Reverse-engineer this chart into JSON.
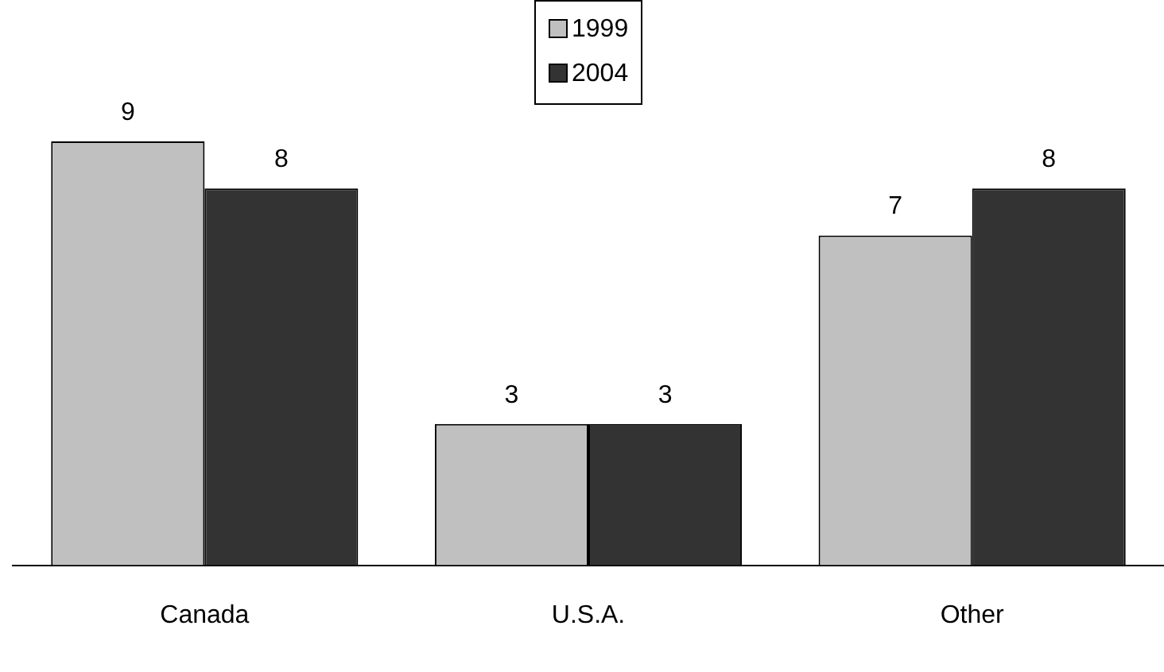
{
  "chart_data": {
    "type": "bar",
    "categories": [
      "Canada",
      "U.S.A.",
      "Other"
    ],
    "series": [
      {
        "name": "1999",
        "color": "#c0c0c0",
        "values": [
          9,
          3,
          7
        ]
      },
      {
        "name": "2004",
        "color": "#333333",
        "values": [
          8,
          3,
          8
        ]
      }
    ],
    "ylim": [
      0,
      12
    ],
    "tick_labels": "x",
    "data_labels": true,
    "legend": "top",
    "grid": false
  }
}
